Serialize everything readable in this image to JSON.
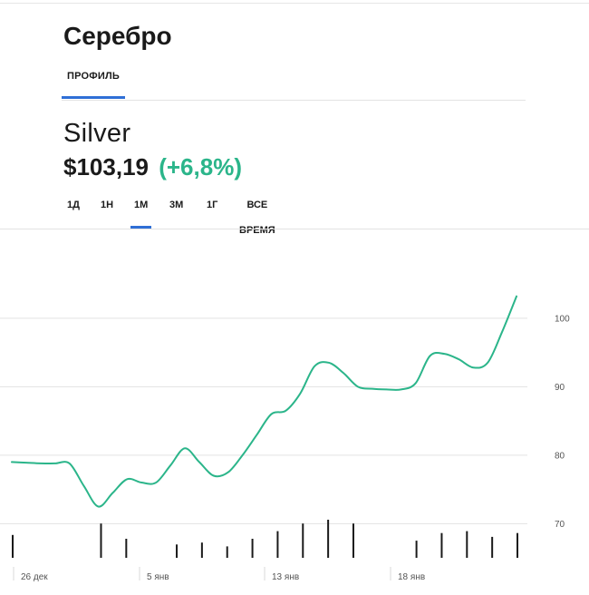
{
  "header": {
    "title": "Серебро"
  },
  "tabs": [
    {
      "label": "ПРОФИЛЬ",
      "active": true
    }
  ],
  "asset": {
    "name": "Silver",
    "price": "$103,19",
    "change": "(+6,8%)"
  },
  "periods": [
    {
      "label": "1Д",
      "active": false
    },
    {
      "label": "1Н",
      "active": false
    },
    {
      "label": "1М",
      "active": true
    },
    {
      "label": "3М",
      "active": false
    },
    {
      "label": "1Г",
      "active": false
    },
    {
      "label": "ВСЕ ВРЕМЯ",
      "active": false
    }
  ],
  "colors": {
    "accent": "#2f6fd6",
    "line": "#2bb58a",
    "grid": "#e3e3e3"
  },
  "chart_data": {
    "type": "line",
    "y_ticks": [
      "100",
      "90",
      "80",
      "70"
    ],
    "ylim": [
      67,
      107
    ],
    "x_ticks": [
      "26 дек",
      "5 янв",
      "13 янв",
      "18 янв"
    ],
    "series": [
      {
        "values": [
          79.0,
          78.9,
          78.8,
          78.8,
          78.8,
          75.5,
          72.5,
          74.5,
          76.5,
          76.0,
          76.0,
          78.5,
          81.0,
          79.0,
          77.0,
          77.5,
          80.0,
          83.0,
          86.0,
          86.5,
          89.0,
          93.0,
          93.5,
          92.0,
          90.0,
          89.7,
          89.6,
          89.6,
          90.5,
          94.5,
          94.8,
          94.0,
          92.8,
          93.5,
          98.0,
          103.2
        ]
      }
    ],
    "volume": [
      6,
      0,
      0,
      0,
      0,
      0,
      0,
      9,
      0,
      5,
      0,
      0,
      0,
      3.5,
      0,
      4,
      0,
      3,
      0,
      5,
      0,
      7,
      0,
      9,
      0,
      10,
      0,
      9,
      0,
      0,
      0,
      0,
      4.5,
      0,
      6.5,
      0,
      7,
      0,
      5.5,
      0,
      6.5
    ]
  }
}
